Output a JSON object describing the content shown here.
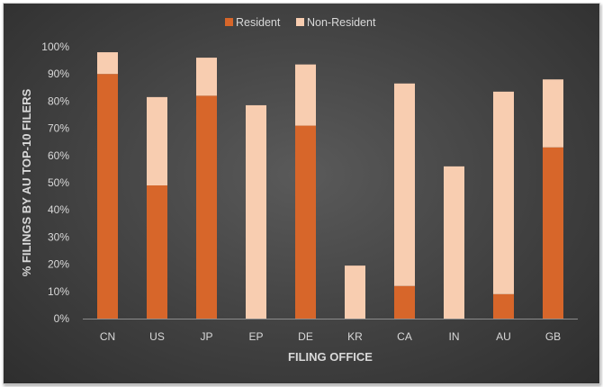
{
  "chart_data": {
    "type": "bar",
    "stacked": true,
    "categories": [
      "CN",
      "US",
      "JP",
      "EP",
      "DE",
      "KR",
      "CA",
      "IN",
      "AU",
      "GB"
    ],
    "series": [
      {
        "name": "Resident",
        "color": "#d7662a",
        "values": [
          90,
          49,
          82,
          0,
          71,
          0,
          12,
          0,
          9,
          63
        ]
      },
      {
        "name": "Non-Resident",
        "color": "#f8cdb0",
        "values": [
          8,
          32.5,
          14,
          78.5,
          22.5,
          19.5,
          74.5,
          56,
          74.5,
          25
        ]
      }
    ],
    "xlabel": "FILING OFFICE",
    "ylabel": "% FILINGS BY AU TOP-10 FILERS",
    "ylim": [
      0,
      100
    ],
    "yticks": [
      "0%",
      "10%",
      "20%",
      "30%",
      "40%",
      "50%",
      "60%",
      "70%",
      "80%",
      "90%",
      "100%"
    ],
    "legend_position": "top",
    "grid": false
  }
}
